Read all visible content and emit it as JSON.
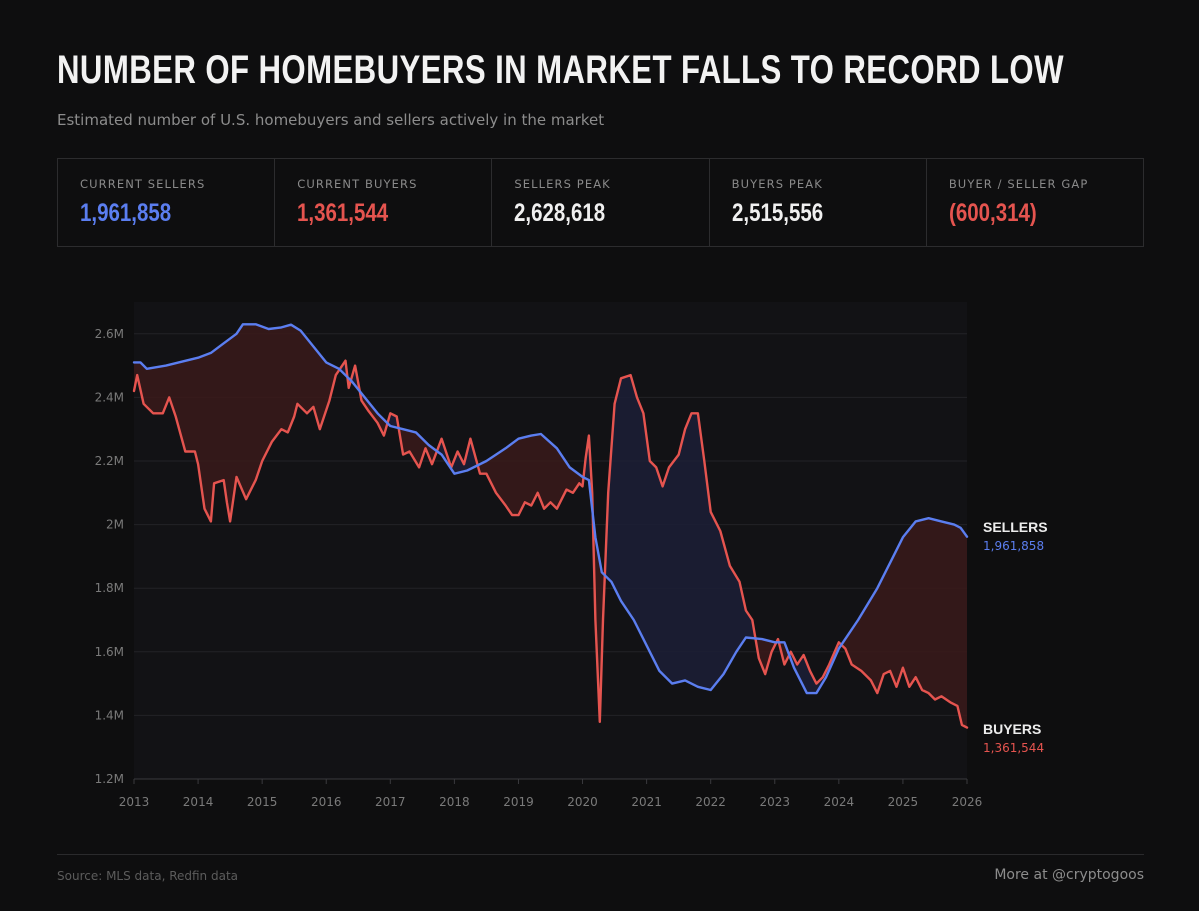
{
  "header": {
    "title": "NUMBER OF HOMEBUYERS IN MARKET FALLS TO RECORD LOW",
    "subtitle": "Estimated number of U.S. homebuyers and sellers actively in the market"
  },
  "stats": [
    {
      "label": "CURRENT SELLERS",
      "value": "1,961,858",
      "color": "#5b7ef0"
    },
    {
      "label": "CURRENT BUYERS",
      "value": "1,361,544",
      "color": "#e5544f"
    },
    {
      "label": "SELLERS PEAK",
      "value": "2,628,618",
      "color": "#f0f0f0"
    },
    {
      "label": "BUYERS PEAK",
      "value": "2,515,556",
      "color": "#f0f0f0"
    },
    {
      "label": "BUYER / SELLER GAP",
      "value": "(600,314)",
      "color": "#e5544f"
    }
  ],
  "chart_data": {
    "type": "line",
    "title": "Number of homebuyers in market falls to record low",
    "xlabel": "",
    "ylabel": "",
    "xlim": [
      2013,
      2026
    ],
    "ylim": [
      1200000,
      2700000
    ],
    "x_ticks": [
      "2013",
      "2014",
      "2015",
      "2016",
      "2017",
      "2018",
      "2019",
      "2020",
      "2021",
      "2022",
      "2023",
      "2024",
      "2025",
      "2026"
    ],
    "y_ticks": [
      {
        "value": 1200000,
        "label": "1.2M"
      },
      {
        "value": 1400000,
        "label": "1.4M"
      },
      {
        "value": 1600000,
        "label": "1.6M"
      },
      {
        "value": 1800000,
        "label": "1.8M"
      },
      {
        "value": 2000000,
        "label": "2M"
      },
      {
        "value": 2200000,
        "label": "2.2M"
      },
      {
        "value": 2400000,
        "label": "2.4M"
      },
      {
        "value": 2600000,
        "label": "2.6M"
      }
    ],
    "grid": true,
    "fill_between": {
      "sellers_above_color": "#3a1a1a",
      "buyers_above_color": "#1c1f36"
    },
    "series": [
      {
        "name": "Sellers",
        "end_label": "SELLERS",
        "end_value": "1,961,858",
        "color": "#5b7ef0",
        "points": [
          [
            2013.0,
            2510000
          ],
          [
            2013.1,
            2510000
          ],
          [
            2013.2,
            2490000
          ],
          [
            2013.5,
            2500000
          ],
          [
            2013.8,
            2515000
          ],
          [
            2014.0,
            2525000
          ],
          [
            2014.2,
            2540000
          ],
          [
            2014.4,
            2570000
          ],
          [
            2014.6,
            2600000
          ],
          [
            2014.7,
            2630000
          ],
          [
            2014.9,
            2630000
          ],
          [
            2015.1,
            2615000
          ],
          [
            2015.3,
            2620000
          ],
          [
            2015.45,
            2628618
          ],
          [
            2015.6,
            2610000
          ],
          [
            2015.8,
            2560000
          ],
          [
            2016.0,
            2510000
          ],
          [
            2016.2,
            2490000
          ],
          [
            2016.4,
            2450000
          ],
          [
            2016.6,
            2400000
          ],
          [
            2016.8,
            2350000
          ],
          [
            2017.0,
            2310000
          ],
          [
            2017.2,
            2300000
          ],
          [
            2017.4,
            2290000
          ],
          [
            2017.6,
            2250000
          ],
          [
            2017.8,
            2220000
          ],
          [
            2018.0,
            2160000
          ],
          [
            2018.2,
            2170000
          ],
          [
            2018.5,
            2200000
          ],
          [
            2018.8,
            2240000
          ],
          [
            2019.0,
            2270000
          ],
          [
            2019.2,
            2280000
          ],
          [
            2019.35,
            2285000
          ],
          [
            2019.6,
            2240000
          ],
          [
            2019.8,
            2180000
          ],
          [
            2020.0,
            2150000
          ],
          [
            2020.1,
            2140000
          ],
          [
            2020.2,
            1960000
          ],
          [
            2020.3,
            1850000
          ],
          [
            2020.45,
            1820000
          ],
          [
            2020.6,
            1760000
          ],
          [
            2020.8,
            1700000
          ],
          [
            2021.0,
            1620000
          ],
          [
            2021.2,
            1540000
          ],
          [
            2021.4,
            1500000
          ],
          [
            2021.6,
            1510000
          ],
          [
            2021.8,
            1490000
          ],
          [
            2022.0,
            1480000
          ],
          [
            2022.2,
            1530000
          ],
          [
            2022.4,
            1600000
          ],
          [
            2022.55,
            1645000
          ],
          [
            2022.8,
            1640000
          ],
          [
            2023.0,
            1630000
          ],
          [
            2023.15,
            1630000
          ],
          [
            2023.3,
            1550000
          ],
          [
            2023.5,
            1470000
          ],
          [
            2023.65,
            1470000
          ],
          [
            2023.8,
            1520000
          ],
          [
            2024.0,
            1610000
          ],
          [
            2024.3,
            1700000
          ],
          [
            2024.6,
            1800000
          ],
          [
            2024.8,
            1880000
          ],
          [
            2025.0,
            1960000
          ],
          [
            2025.2,
            2010000
          ],
          [
            2025.4,
            2020000
          ],
          [
            2025.6,
            2010000
          ],
          [
            2025.8,
            2000000
          ],
          [
            2025.9,
            1990000
          ],
          [
            2026.0,
            1961858
          ]
        ]
      },
      {
        "name": "Buyers",
        "end_label": "BUYERS",
        "end_value": "1,361,544",
        "color": "#e5544f",
        "points": [
          [
            2013.0,
            2420000
          ],
          [
            2013.05,
            2470000
          ],
          [
            2013.15,
            2380000
          ],
          [
            2013.3,
            2350000
          ],
          [
            2013.45,
            2350000
          ],
          [
            2013.55,
            2400000
          ],
          [
            2013.65,
            2340000
          ],
          [
            2013.8,
            2230000
          ],
          [
            2013.95,
            2230000
          ],
          [
            2014.0,
            2190000
          ],
          [
            2014.1,
            2050000
          ],
          [
            2014.2,
            2010000
          ],
          [
            2014.25,
            2130000
          ],
          [
            2014.4,
            2140000
          ],
          [
            2014.45,
            2070000
          ],
          [
            2014.5,
            2010000
          ],
          [
            2014.6,
            2150000
          ],
          [
            2014.75,
            2080000
          ],
          [
            2014.9,
            2140000
          ],
          [
            2015.0,
            2200000
          ],
          [
            2015.15,
            2260000
          ],
          [
            2015.3,
            2300000
          ],
          [
            2015.4,
            2290000
          ],
          [
            2015.5,
            2340000
          ],
          [
            2015.55,
            2380000
          ],
          [
            2015.7,
            2350000
          ],
          [
            2015.8,
            2370000
          ],
          [
            2015.9,
            2300000
          ],
          [
            2016.05,
            2390000
          ],
          [
            2016.15,
            2470000
          ],
          [
            2016.3,
            2515556
          ],
          [
            2016.35,
            2430000
          ],
          [
            2016.45,
            2500000
          ],
          [
            2016.55,
            2390000
          ],
          [
            2016.65,
            2360000
          ],
          [
            2016.8,
            2320000
          ],
          [
            2016.9,
            2280000
          ],
          [
            2017.0,
            2350000
          ],
          [
            2017.1,
            2340000
          ],
          [
            2017.2,
            2220000
          ],
          [
            2017.3,
            2230000
          ],
          [
            2017.45,
            2180000
          ],
          [
            2017.55,
            2240000
          ],
          [
            2017.65,
            2190000
          ],
          [
            2017.8,
            2270000
          ],
          [
            2017.95,
            2180000
          ],
          [
            2018.05,
            2230000
          ],
          [
            2018.15,
            2190000
          ],
          [
            2018.25,
            2270000
          ],
          [
            2018.4,
            2160000
          ],
          [
            2018.5,
            2160000
          ],
          [
            2018.65,
            2100000
          ],
          [
            2018.8,
            2060000
          ],
          [
            2018.9,
            2030000
          ],
          [
            2019.0,
            2030000
          ],
          [
            2019.1,
            2070000
          ],
          [
            2019.2,
            2060000
          ],
          [
            2019.3,
            2100000
          ],
          [
            2019.4,
            2050000
          ],
          [
            2019.5,
            2070000
          ],
          [
            2019.6,
            2050000
          ],
          [
            2019.75,
            2110000
          ],
          [
            2019.85,
            2100000
          ],
          [
            2019.95,
            2130000
          ],
          [
            2020.0,
            2120000
          ],
          [
            2020.05,
            2210000
          ],
          [
            2020.1,
            2280000
          ],
          [
            2020.15,
            2100000
          ],
          [
            2020.2,
            1700000
          ],
          [
            2020.27,
            1380000
          ],
          [
            2020.32,
            1700000
          ],
          [
            2020.4,
            2100000
          ],
          [
            2020.5,
            2380000
          ],
          [
            2020.6,
            2460000
          ],
          [
            2020.75,
            2470000
          ],
          [
            2020.85,
            2400000
          ],
          [
            2020.95,
            2350000
          ],
          [
            2021.05,
            2200000
          ],
          [
            2021.15,
            2180000
          ],
          [
            2021.25,
            2120000
          ],
          [
            2021.35,
            2180000
          ],
          [
            2021.5,
            2220000
          ],
          [
            2021.6,
            2300000
          ],
          [
            2021.7,
            2350000
          ],
          [
            2021.8,
            2350000
          ],
          [
            2021.9,
            2200000
          ],
          [
            2022.0,
            2040000
          ],
          [
            2022.15,
            1980000
          ],
          [
            2022.3,
            1870000
          ],
          [
            2022.45,
            1820000
          ],
          [
            2022.55,
            1730000
          ],
          [
            2022.65,
            1700000
          ],
          [
            2022.75,
            1580000
          ],
          [
            2022.85,
            1530000
          ],
          [
            2022.95,
            1600000
          ],
          [
            2023.05,
            1640000
          ],
          [
            2023.15,
            1560000
          ],
          [
            2023.25,
            1600000
          ],
          [
            2023.35,
            1560000
          ],
          [
            2023.45,
            1590000
          ],
          [
            2023.55,
            1540000
          ],
          [
            2023.65,
            1500000
          ],
          [
            2023.75,
            1520000
          ],
          [
            2023.85,
            1560000
          ],
          [
            2024.0,
            1630000
          ],
          [
            2024.1,
            1610000
          ],
          [
            2024.2,
            1560000
          ],
          [
            2024.35,
            1540000
          ],
          [
            2024.5,
            1510000
          ],
          [
            2024.6,
            1470000
          ],
          [
            2024.7,
            1530000
          ],
          [
            2024.8,
            1540000
          ],
          [
            2024.9,
            1490000
          ],
          [
            2025.0,
            1550000
          ],
          [
            2025.1,
            1490000
          ],
          [
            2025.2,
            1520000
          ],
          [
            2025.3,
            1480000
          ],
          [
            2025.4,
            1470000
          ],
          [
            2025.5,
            1450000
          ],
          [
            2025.6,
            1460000
          ],
          [
            2025.75,
            1440000
          ],
          [
            2025.85,
            1430000
          ],
          [
            2025.92,
            1370000
          ],
          [
            2026.0,
            1361544
          ]
        ]
      }
    ]
  },
  "footer": {
    "source": "Source: MLS data, Redfin data",
    "credit": "More at @cryptogoos"
  }
}
